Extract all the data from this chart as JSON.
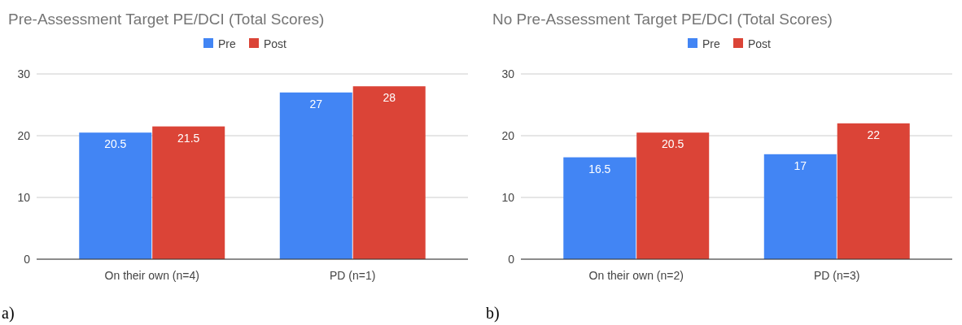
{
  "chart_data": [
    {
      "type": "bar",
      "title": "Pre-Assessment Target PE/DCI (Total Scores)",
      "categories": [
        "On their own (n=4)",
        "PD (n=1)"
      ],
      "series": [
        {
          "name": "Pre",
          "color": "#4285f4",
          "values": [
            20.5,
            27
          ]
        },
        {
          "name": "Post",
          "color": "#db4437",
          "values": [
            21.5,
            28
          ]
        }
      ],
      "ylim": [
        0,
        30
      ],
      "yticks": [
        0,
        10,
        20,
        30
      ],
      "grid": "y",
      "legend": "top",
      "data_labels": true,
      "annotations": [
        "a)"
      ]
    },
    {
      "type": "bar",
      "title": "No Pre-Assessment Target PE/DCI (Total Scores)",
      "categories": [
        "On their own (n=2)",
        "PD (n=3)"
      ],
      "series": [
        {
          "name": "Pre",
          "color": "#4285f4",
          "values": [
            16.5,
            17
          ]
        },
        {
          "name": "Post",
          "color": "#db4437",
          "values": [
            20.5,
            22
          ]
        }
      ],
      "ylim": [
        0,
        30
      ],
      "yticks": [
        0,
        10,
        20,
        30
      ],
      "grid": "y",
      "legend": "top",
      "data_labels": true,
      "annotations": [
        "b)"
      ]
    }
  ]
}
